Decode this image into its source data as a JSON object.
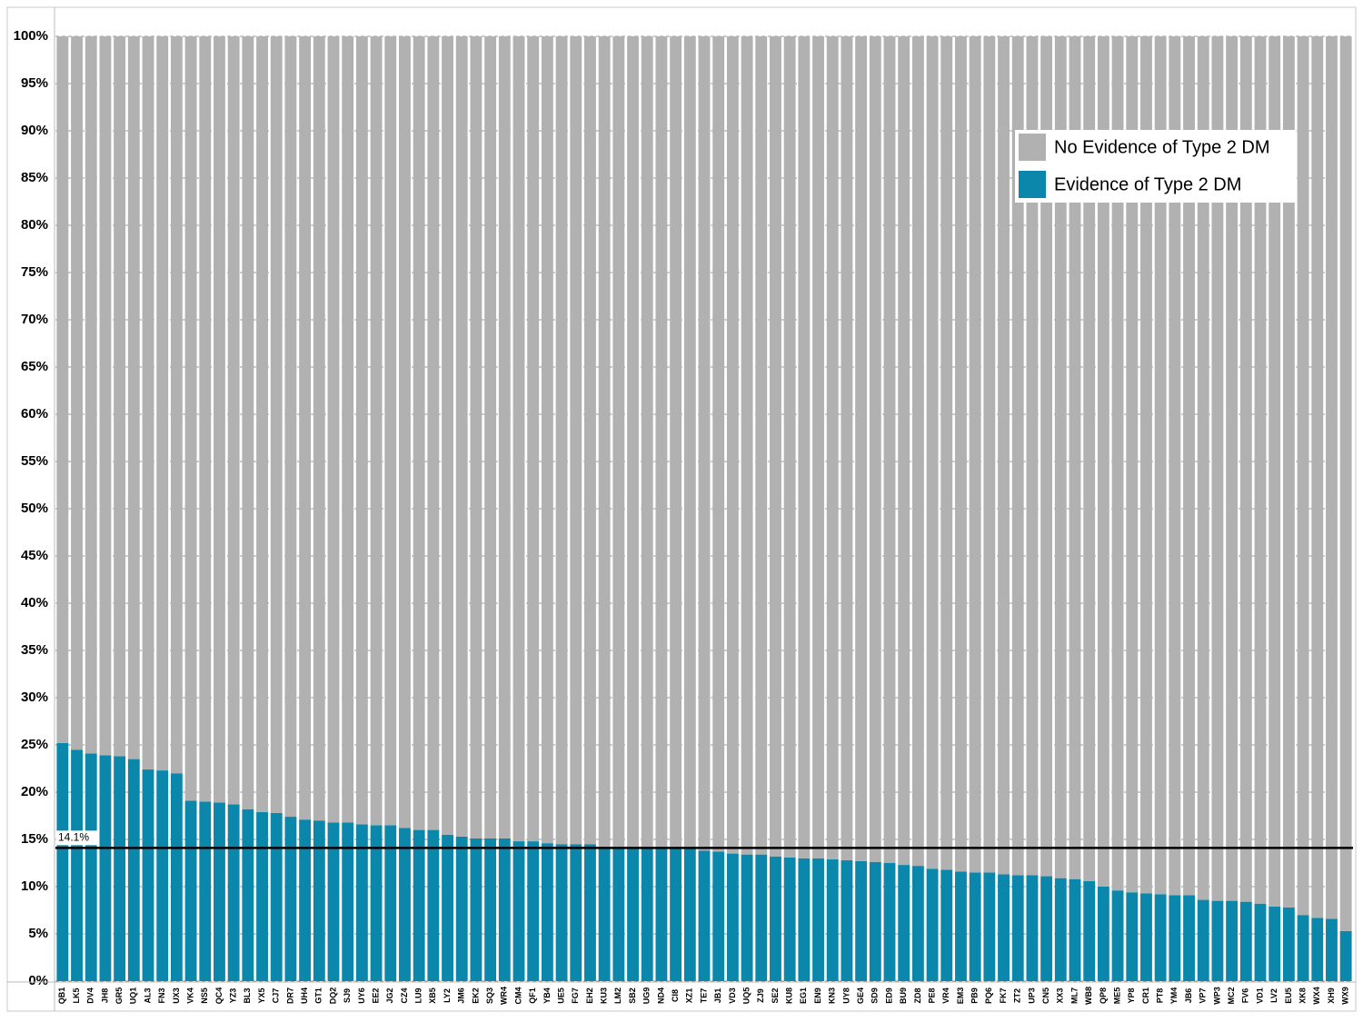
{
  "chart_data": {
    "type": "stacked_bar",
    "categories": [
      "QB1",
      "LK5",
      "DV4",
      "JH8",
      "GR5",
      "UQ1",
      "AL3",
      "FN3",
      "UX3",
      "VK4",
      "NS5",
      "QC4",
      "YZ3",
      "BL3",
      "YX5",
      "CJ7",
      "DR7",
      "UH4",
      "GT1",
      "DQ2",
      "SJ9",
      "UY6",
      "EE2",
      "JG2",
      "CZ4",
      "LU9",
      "XB5",
      "LY2",
      "JM6",
      "EK2",
      "SQ3",
      "WR4",
      "CM4",
      "QF1",
      "YB4",
      "UE5",
      "FG7",
      "EH2",
      "KU3",
      "LM2",
      "SB2",
      "UG9",
      "ND4",
      "CI8",
      "XZ1",
      "TE7",
      "JB1",
      "VD3",
      "UQ5",
      "ZJ9",
      "SE2",
      "KU8",
      "EG1",
      "EN9",
      "KN3",
      "UY8",
      "GE4",
      "SD9",
      "ED9",
      "BU9",
      "ZD8",
      "PE8",
      "VR4",
      "EM3",
      "PB9",
      "PQ6",
      "FK7",
      "ZT2",
      "UP3",
      "CN5",
      "XX3",
      "ML7",
      "WB8",
      "QP8",
      "ME5",
      "YP8",
      "CR1",
      "PT8",
      "YM4",
      "JB6",
      "VP7",
      "WP3",
      "MC2",
      "FV6",
      "VD1",
      "LV2",
      "EU5",
      "XK8",
      "WX4",
      "XH9",
      "WX9"
    ],
    "series": [
      {
        "name": "Evidence of Type 2 DM",
        "color": "#0b87ab",
        "values": [
          25.2,
          24.5,
          24.1,
          23.9,
          23.8,
          23.5,
          22.4,
          22.3,
          22.0,
          19.1,
          19.0,
          18.9,
          18.7,
          18.2,
          17.9,
          17.8,
          17.4,
          17.1,
          17.0,
          16.8,
          16.8,
          16.6,
          16.5,
          16.5,
          16.2,
          16.0,
          16.0,
          15.5,
          15.3,
          15.1,
          15.1,
          15.1,
          14.8,
          14.8,
          14.6,
          14.5,
          14.5,
          14.5,
          14.2,
          14.1,
          14.1,
          14.1,
          14.1,
          14.0,
          14.0,
          13.8,
          13.7,
          13.5,
          13.4,
          13.4,
          13.2,
          13.1,
          13.0,
          13.0,
          12.9,
          12.8,
          12.7,
          12.6,
          12.5,
          12.3,
          12.2,
          11.9,
          11.8,
          11.6,
          11.5,
          11.5,
          11.3,
          11.2,
          11.2,
          11.1,
          10.9,
          10.8,
          10.6,
          10.0,
          9.6,
          9.4,
          9.3,
          9.2,
          9.1,
          9.1,
          8.6,
          8.5,
          8.5,
          8.4,
          8.2,
          7.9,
          7.8,
          7.0,
          6.7,
          6.6,
          5.3
        ]
      },
      {
        "name": "No Evidence of Type 2 DM",
        "color": "#b1b1b1",
        "values": [
          74.8,
          75.5,
          75.9,
          76.1,
          76.2,
          76.5,
          77.6,
          77.7,
          78.0,
          80.9,
          81.0,
          81.1,
          81.3,
          81.8,
          82.1,
          82.2,
          82.6,
          82.9,
          83.0,
          83.2,
          83.2,
          83.4,
          83.5,
          83.5,
          83.8,
          84.0,
          84.0,
          84.5,
          84.7,
          84.9,
          84.9,
          84.9,
          85.2,
          85.2,
          85.4,
          85.5,
          85.5,
          85.5,
          85.8,
          85.9,
          85.9,
          85.9,
          85.9,
          86.0,
          86.0,
          86.2,
          86.3,
          86.5,
          86.6,
          86.6,
          86.8,
          86.9,
          87.0,
          87.0,
          87.1,
          87.2,
          87.3,
          87.4,
          87.5,
          87.7,
          87.8,
          88.1,
          88.2,
          88.4,
          88.5,
          88.5,
          88.7,
          88.8,
          88.8,
          88.9,
          89.1,
          89.2,
          89.4,
          90.0,
          90.4,
          90.6,
          90.7,
          90.8,
          90.9,
          90.9,
          91.4,
          91.5,
          91.5,
          91.6,
          91.8,
          92.1,
          92.2,
          93.0,
          93.3,
          93.4,
          94.7
        ]
      }
    ],
    "ylim": [
      0,
      100
    ],
    "yticks": [
      {
        "value": 0,
        "label": "0%"
      },
      {
        "value": 5,
        "label": "5%"
      },
      {
        "value": 10,
        "label": "10%"
      },
      {
        "value": 15,
        "label": "15%"
      },
      {
        "value": 20,
        "label": "20%"
      },
      {
        "value": 25,
        "label": "25%"
      },
      {
        "value": 30,
        "label": "30%"
      },
      {
        "value": 35,
        "label": "35%"
      },
      {
        "value": 40,
        "label": "40%"
      },
      {
        "value": 45,
        "label": "45%"
      },
      {
        "value": 50,
        "label": "50%"
      },
      {
        "value": 55,
        "label": "55%"
      },
      {
        "value": 60,
        "label": "60%"
      },
      {
        "value": 65,
        "label": "65%"
      },
      {
        "value": 70,
        "label": "70%"
      },
      {
        "value": 75,
        "label": "75%"
      },
      {
        "value": 80,
        "label": "80%"
      },
      {
        "value": 85,
        "label": "85%"
      },
      {
        "value": 90,
        "label": "90%"
      },
      {
        "value": 95,
        "label": "95%"
      },
      {
        "value": 100,
        "label": "100%"
      }
    ],
    "reference_line": {
      "value": 14.1,
      "label": "14.1%"
    },
    "grid": true,
    "legend_position": "upper-right"
  }
}
